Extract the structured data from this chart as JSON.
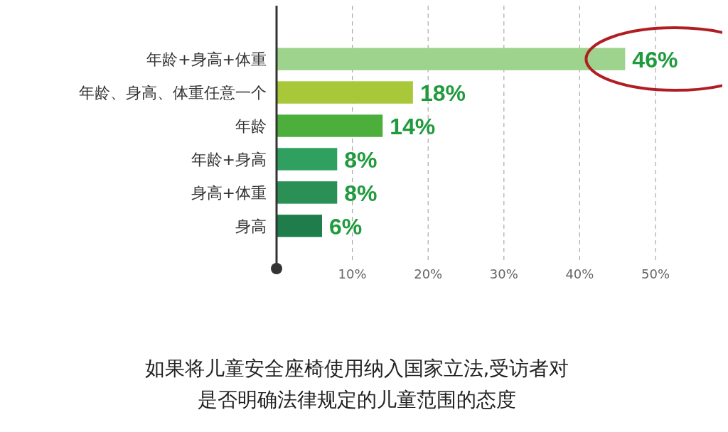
{
  "chart_data": {
    "type": "bar",
    "orientation": "horizontal",
    "title": "如果将儿童安全座椅使用纳入国家立法,受访者对是否明确法律规定的儿童范围的态度",
    "categories": [
      "年龄+身高+体重",
      "年龄、身高、体重任意一个",
      "年龄",
      "年龄+身高",
      "身高+体重",
      "身高"
    ],
    "values": [
      46,
      18,
      14,
      8,
      8,
      6
    ],
    "colors": [
      "#9dd38c",
      "#a8c83a",
      "#4caf3c",
      "#2fa060",
      "#2b9055",
      "#1f7d4b"
    ],
    "value_labels": [
      "46%",
      "18%",
      "14%",
      "8%",
      "8%",
      "6%"
    ],
    "xlim": [
      0,
      50
    ],
    "xticks": [
      {
        "value": 10,
        "label": "10%"
      },
      {
        "value": 20,
        "label": "20%"
      },
      {
        "value": 30,
        "label": "30%"
      },
      {
        "value": 40,
        "label": "40%"
      },
      {
        "value": 50,
        "label": "50%"
      }
    ],
    "grid": "x"
  }
}
